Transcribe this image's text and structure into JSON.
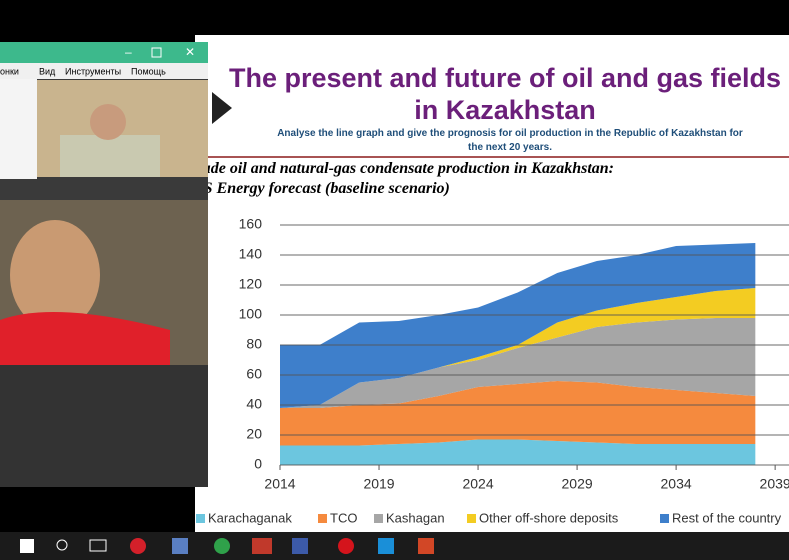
{
  "window": {
    "menu": [
      "онки",
      "Вид",
      "Инструменты",
      "Помощь"
    ]
  },
  "slide": {
    "title": "The present and future of oil and gas fields in Kazakhstan",
    "subtitle": "Analyse the line graph and give the prognosis for oil production in the Republic of Kazakhstan for the next 20 years."
  },
  "chart_data": {
    "type": "stacked-area",
    "title": "Crude oil and natural-gas condensate production in Kazakhstan:",
    "subtitle": "IHS Energy forecast (baseline scenario)",
    "x": [
      2014,
      2016,
      2018,
      2020,
      2022,
      2024,
      2026,
      2028,
      2030,
      2032,
      2034,
      2036,
      2038
    ],
    "series": [
      {
        "name": "Karachaganak",
        "color": "#6cc6df",
        "values": [
          13,
          13,
          13,
          14,
          15,
          17,
          17,
          16,
          15,
          14,
          14,
          14,
          14
        ]
      },
      {
        "name": "TCO",
        "color": "#f58a3e",
        "values": [
          25,
          25,
          27,
          27,
          31,
          35,
          37,
          40,
          40,
          38,
          36,
          34,
          32
        ]
      },
      {
        "name": "Kashagan",
        "color": "#a6a6a6",
        "values": [
          0,
          2,
          15,
          17,
          19,
          18,
          24,
          29,
          37,
          43,
          47,
          50,
          52
        ]
      },
      {
        "name": "Other off-shore deposits",
        "color": "#f3cc22",
        "values": [
          0,
          0,
          0,
          0,
          0,
          2,
          2,
          10,
          11,
          13,
          15,
          18,
          20
        ]
      },
      {
        "name": "Rest of the country",
        "color": "#3e7fcb",
        "values": [
          42,
          40,
          40,
          38,
          35,
          33,
          35,
          33,
          33,
          32,
          34,
          31,
          30
        ]
      }
    ],
    "xlim": [
      2014,
      2039.7
    ],
    "xticks": [
      2014,
      2019,
      2024,
      2029,
      2034,
      2039
    ],
    "ylim": [
      0,
      160
    ],
    "yticks": [
      0,
      20,
      40,
      60,
      80,
      100,
      120,
      140,
      160
    ],
    "grid": true
  }
}
